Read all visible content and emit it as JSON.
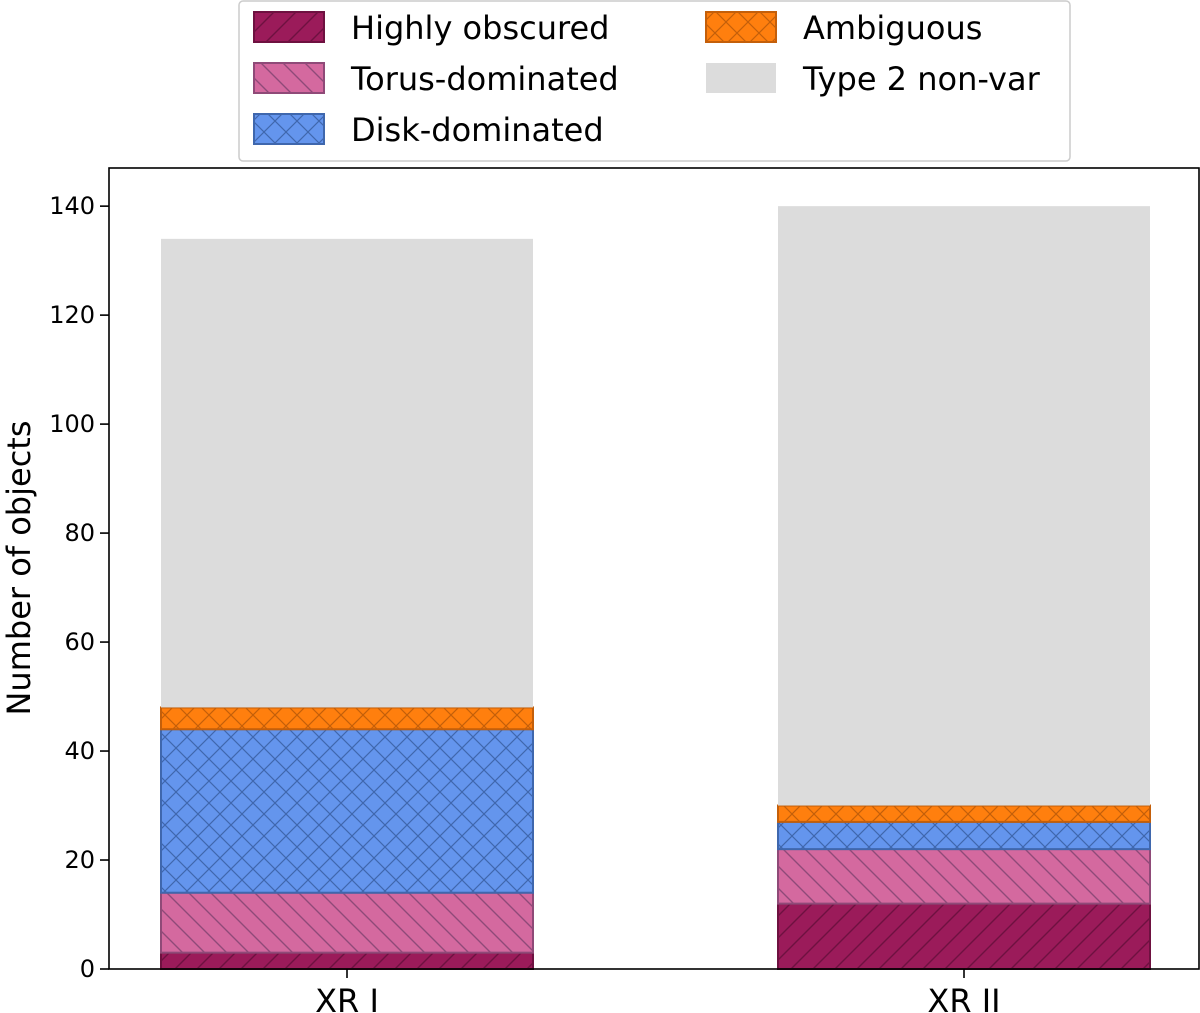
{
  "chart_data": {
    "type": "bar",
    "stacked": true,
    "categories": [
      "XR I",
      "XR II"
    ],
    "series": [
      {
        "name": "Highly obscured",
        "values": [
          3,
          12
        ],
        "color": "#9b1b5a",
        "edge": "#6e1140",
        "hatch": "diag-fwd"
      },
      {
        "name": "Torus-dominated",
        "values": [
          11,
          10
        ],
        "color": "#d4699f",
        "edge": "#8f4a78",
        "hatch": "diag-back"
      },
      {
        "name": "Disk-dominated",
        "values": [
          30,
          5
        ],
        "color": "#6495ed",
        "edge": "#3f67ad",
        "hatch": "cross"
      },
      {
        "name": "Ambiguous",
        "values": [
          4,
          3
        ],
        "color": "#ff7f0e",
        "edge": "#c45f0a",
        "hatch": "cross"
      },
      {
        "name": "Type 2 non-var",
        "values": [
          86,
          110
        ],
        "color": "#dcdcdc",
        "edge": "#dcdcdc",
        "hatch": "none"
      }
    ],
    "xlabel": "",
    "ylabel": "Number of objects",
    "ylim": [
      0,
      147
    ],
    "yticks": [
      0,
      20,
      40,
      60,
      80,
      100,
      120,
      140
    ],
    "grid": false,
    "legend_position": "top-center, above plot, 2 columns"
  }
}
